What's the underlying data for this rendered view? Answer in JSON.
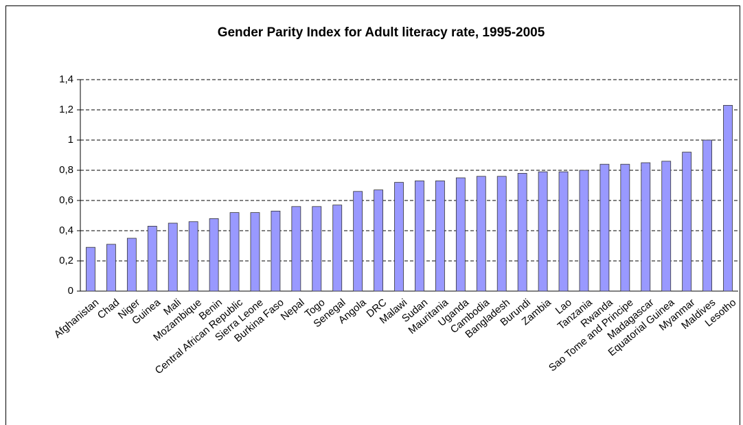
{
  "chart_data": {
    "type": "bar",
    "title": "Gender Parity Index for Adult literacy rate, 1995-2005",
    "categories": [
      "Afghanistan",
      "Chad",
      "Niger",
      "Guinea",
      "Mali",
      "Mozambique",
      "Benin",
      "Central African Republic",
      "Sierra Leone",
      "Burkina Faso",
      "Nepal",
      "Togo",
      "Senegal",
      "Angola",
      "DRC",
      "Malawi",
      "Sudan",
      "Mauritania",
      "Uganda",
      "Cambodia",
      "Bangladesh",
      "Burundi",
      "Zambia",
      "Lao",
      "Tanzania",
      "Rwanda",
      "Sao Tome and Principe",
      "Madagascar",
      "Equatorial Guinea",
      "Myanmar",
      "Maldives",
      "Lesotho"
    ],
    "values": [
      0.29,
      0.31,
      0.35,
      0.43,
      0.45,
      0.46,
      0.48,
      0.52,
      0.52,
      0.53,
      0.56,
      0.56,
      0.57,
      0.66,
      0.67,
      0.72,
      0.73,
      0.73,
      0.75,
      0.76,
      0.76,
      0.78,
      0.79,
      0.79,
      0.8,
      0.84,
      0.84,
      0.85,
      0.86,
      0.92,
      1.0,
      1.23
    ],
    "color": "#9999ff",
    "ylim": [
      0,
      1.4
    ],
    "yticks": [
      0,
      {
        "value": 0.2,
        "label": "0,2"
      },
      {
        "value": 0.4,
        "label": "0,4"
      },
      {
        "value": 0.6,
        "label": "0,6"
      },
      {
        "value": 0.8,
        "label": "0,8"
      },
      1,
      {
        "value": 1.2,
        "label": "1,2"
      },
      {
        "value": 1.4,
        "label": "1,4"
      }
    ],
    "grid": true
  }
}
